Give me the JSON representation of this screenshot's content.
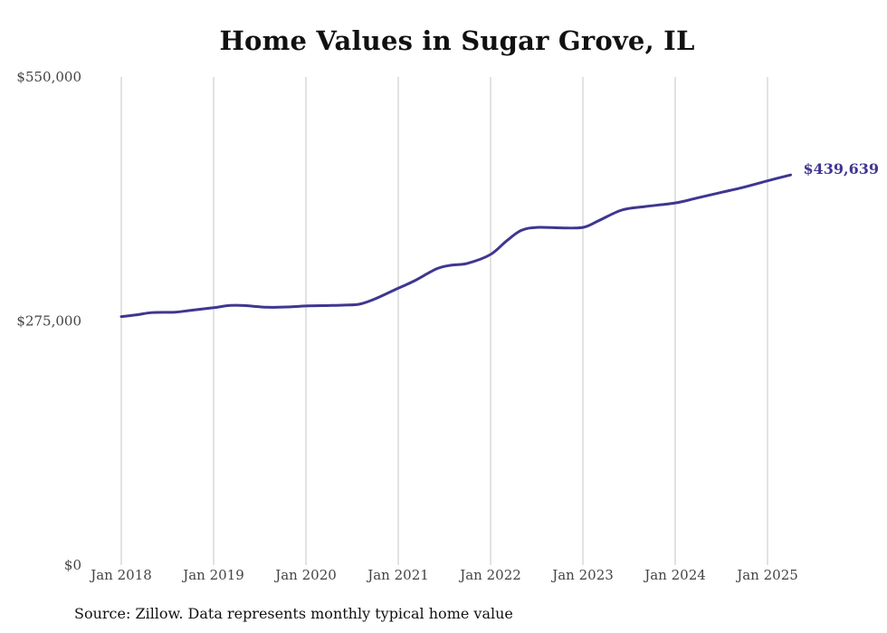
{
  "chart_data": {
    "type": "line",
    "title": "Home Values in Sugar Grove, IL",
    "source": "Source: Zillow. Data represents monthly typical home value",
    "y_ticks": [
      {
        "value": 0,
        "label": "$0"
      },
      {
        "value": 275000,
        "label": "$275,000"
      },
      {
        "value": 550000,
        "label": "$550,000"
      }
    ],
    "ylim": [
      0,
      550000
    ],
    "x_ticks": [
      {
        "value": 2018.0,
        "label": "Jan 2018"
      },
      {
        "value": 2019.0,
        "label": "Jan 2019"
      },
      {
        "value": 2020.0,
        "label": "Jan 2020"
      },
      {
        "value": 2021.0,
        "label": "Jan 2021"
      },
      {
        "value": 2022.0,
        "label": "Jan 2022"
      },
      {
        "value": 2023.0,
        "label": "Jan 2023"
      },
      {
        "value": 2024.0,
        "label": "Jan 2024"
      },
      {
        "value": 2025.0,
        "label": "Jan 2025"
      }
    ],
    "xlim": [
      2018.0,
      2025.25
    ],
    "grid": "vertical",
    "line_color": "#3f3690",
    "end_label": "$439,639",
    "series": [
      {
        "points": [
          [
            2018.0,
            280000
          ],
          [
            2018.17,
            282000
          ],
          [
            2018.33,
            284500
          ],
          [
            2018.58,
            285000
          ],
          [
            2018.75,
            287000
          ],
          [
            2019.0,
            290000
          ],
          [
            2019.17,
            292500
          ],
          [
            2019.33,
            292500
          ],
          [
            2019.58,
            290500
          ],
          [
            2019.83,
            291000
          ],
          [
            2020.0,
            292000
          ],
          [
            2020.25,
            292500
          ],
          [
            2020.42,
            293000
          ],
          [
            2020.58,
            294000
          ],
          [
            2020.75,
            300000
          ],
          [
            2021.0,
            312000
          ],
          [
            2021.17,
            320000
          ],
          [
            2021.42,
            334000
          ],
          [
            2021.58,
            338000
          ],
          [
            2021.75,
            340000
          ],
          [
            2022.0,
            350000
          ],
          [
            2022.17,
            365000
          ],
          [
            2022.33,
            377000
          ],
          [
            2022.5,
            380500
          ],
          [
            2022.75,
            380000
          ],
          [
            2023.0,
            380500
          ],
          [
            2023.17,
            388000
          ],
          [
            2023.42,
            400000
          ],
          [
            2023.67,
            404000
          ],
          [
            2024.0,
            408000
          ],
          [
            2024.25,
            414000
          ],
          [
            2024.5,
            420000
          ],
          [
            2024.75,
            426000
          ],
          [
            2025.0,
            433000
          ],
          [
            2025.25,
            439639
          ]
        ]
      }
    ]
  }
}
